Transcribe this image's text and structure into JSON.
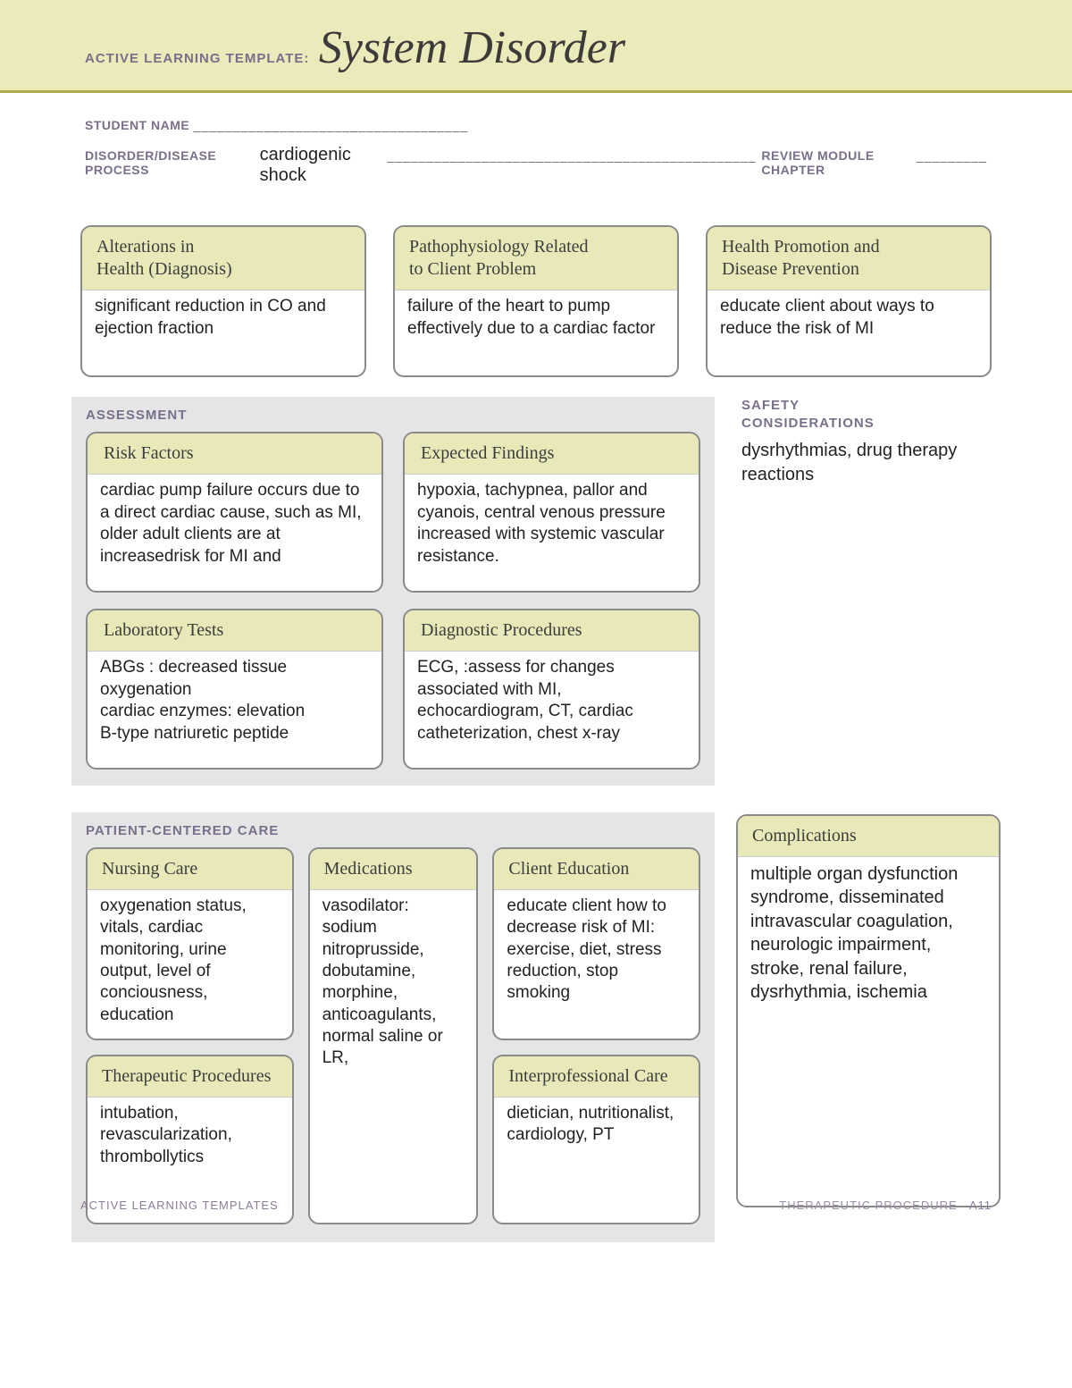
{
  "colors": {
    "header_bg": "#eaeabb",
    "header_rule": "#b0a84a",
    "section_bg": "#e5e5e5",
    "card_head_bg": "#e8e8b8",
    "card_border": "#8a8a8a",
    "label_color": "#7a6f8a",
    "title_color": "#3f3a3a",
    "text_color": "#222222"
  },
  "header": {
    "template_label": "ACTIVE LEARNING TEMPLATE:",
    "title": "System Disorder"
  },
  "fields": {
    "student_name_label": "STUDENT NAME",
    "student_name_value": "",
    "disorder_label": "DISORDER/DISEASE PROCESS",
    "disorder_value": "cardiogenic shock",
    "review_label": "REVIEW MODULE CHAPTER",
    "review_value": ""
  },
  "top": {
    "alterations": {
      "title": "Alterations in Health (Diagnosis)",
      "body": "significant reduction in CO and ejection fraction"
    },
    "patho": {
      "title": "Pathophysiology Related to Client Problem",
      "body": "failure of the heart to pump effectively due to a cardiac factor"
    },
    "health_promo": {
      "title": "Health Promotion and Disease Prevention",
      "body": "educate client about ways to reduce the risk of MI"
    }
  },
  "assessment": {
    "section_title": "ASSESSMENT",
    "risk": {
      "title": "Risk Factors",
      "body": "cardiac pump failure occurs due to a direct cardiac cause, such as MI, older adult clients are at increasedrisk for MI and"
    },
    "expected": {
      "title": "Expected Findings",
      "body": "hypoxia, tachypnea, pallor and cyanois, central venous pressure increased with systemic vascular resistance."
    },
    "labs": {
      "title": "Laboratory Tests",
      "body": "ABGs : decreased tissue oxygenation\ncardiac enzymes: elevation\nB-type natriuretic peptide"
    },
    "diag": {
      "title": "Diagnostic Procedures",
      "body": "ECG, :assess for changes associated with MI, echocardiogram, CT, cardiac catheterization, chest x-ray"
    }
  },
  "safety": {
    "section_title": "SAFETY CONSIDERATIONS",
    "body": "dysrhythmias, drug therapy reactions"
  },
  "pcc": {
    "section_title": "PATIENT-CENTERED CARE",
    "nursing": {
      "title": "Nursing Care",
      "body": "oxygenation status, vitals, cardiac monitoring, urine output, level of conciousness, education"
    },
    "meds": {
      "title": "Medications",
      "body": "vasodilator: sodium nitroprusside, dobutamine, morphine, anticoagulants, normal saline or LR,"
    },
    "client_ed": {
      "title": "Client Education",
      "body": "educate client how to decrease risk of MI: exercise, diet, stress reduction, stop smoking"
    },
    "therapeutic": {
      "title": "Therapeutic Procedures",
      "body": "intubation, revascularization, thrombollytics"
    },
    "interprof": {
      "title": "Interprofessional Care",
      "body": "dietician, nutritionalist, cardiology, PT"
    }
  },
  "complications": {
    "title": "Complications",
    "body": "multiple organ dysfunction syndrome, disseminated intravascular coagulation, neurologic impairment, stroke, renal failure, dysrhythmia, ischemia"
  },
  "footer": {
    "left": "ACTIVE LEARNING TEMPLATES",
    "right": "THERAPEUTIC PROCEDURE",
    "page": "A11"
  }
}
